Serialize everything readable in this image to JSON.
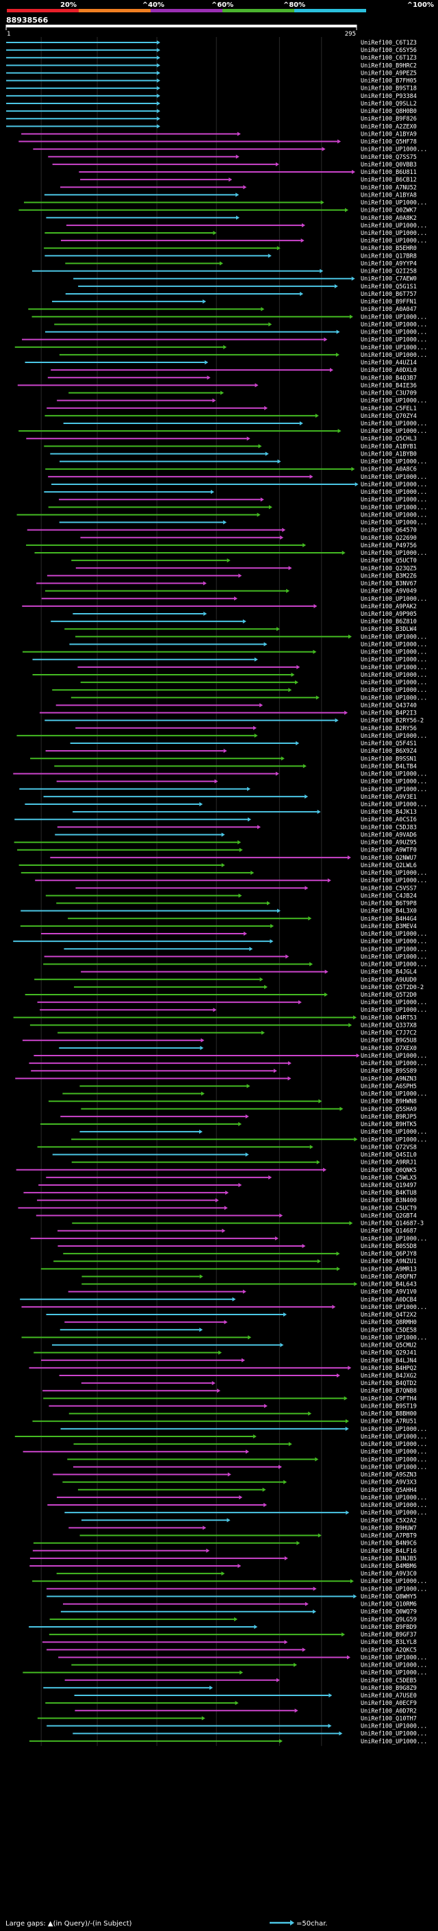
{
  "query_id": "88938566",
  "chart_data": {
    "type": "alignment-overview",
    "identity_scale": {
      "ticks": [
        "20%",
        "^40%",
        "^60%",
        "^80%",
        "^100%"
      ],
      "colors": [
        "#e8202a",
        "#f07f22",
        "#9a2fb3",
        "#4bb32f",
        "#2bc0dd"
      ]
    },
    "query_length": 295,
    "axis_start": "1",
    "axis_end": "295",
    "colors": {
      "cyan": "#4cc7e6",
      "magenta": "#cc44cc",
      "green": "#44bb22"
    },
    "bin_edges": [
      0.1,
      0.26,
      0.43,
      0.6,
      0.78,
      0.9
    ],
    "labels": [
      "UniRef100_C6T1Z3",
      "UniRef100_C6SY56",
      "UniRef100_C6T1Z3",
      "UniRef100_B9HRC2",
      "UniRef100_A9PEZ5",
      "UniRef100_B7FH05",
      "UniRef100_B9ST18",
      "UniRef100_P93384",
      "UniRef100_Q9SLL2",
      "UniRef100_Q8H0B0",
      "UniRef100_B9F826",
      "UniRef100_A2ZEX0",
      "UniRef100_A1BYA9",
      "UniRef100_Q5HF78",
      "UniRef100_UP1000...",
      "UniRef100_Q7SS75",
      "UniRef100_Q0VBB3",
      "UniRef100_B6U811",
      "UniRef100_B6CB12",
      "UniRef100_A7NU52",
      "UniRef100_A1BYA8",
      "UniRef100_UP1000...",
      "UniRef100_Q0ZWK7",
      "UniRef100_A0A8K2",
      "UniRef100_UP1000...",
      "UniRef100_UP1000...",
      "UniRef100_UP1000...",
      "UniRef100_B5EHR0",
      "UniRef100_Q17BR8",
      "UniRef100_A9YYP4",
      "UniRef100_Q2I258",
      "UniRef100_C7AEW0",
      "UniRef100_Q5G1S1",
      "UniRef100_B6T757",
      "UniRef100_B9FFN1",
      "UniRef100_A0A047",
      "UniRef100_UP1000...",
      "UniRef100_UP1000...",
      "UniRef100_UP1000...",
      "UniRef100_UP1000...",
      "UniRef100_UP1000...",
      "UniRef100_UP1000...",
      "UniRef100_A4UZ14",
      "UniRef100_A0DXL0",
      "UniRef100_B4Q3B7",
      "UniRef100_B4IE36",
      "UniRef100_C3U709",
      "UniRef100_UP1000...",
      "UniRef100_C5FEL1",
      "UniRef100_Q70ZY4",
      "UniRef100_UP1000...",
      "UniRef100_UP1000...",
      "UniRef100_Q5CHL3",
      "UniRef100_A1BYB1",
      "UniRef100_A1BYB0",
      "UniRef100_UP1000...",
      "UniRef100_A0A8C6",
      "UniRef100_UP1000...",
      "UniRef100_UP1000...",
      "UniRef100_UP1000...",
      "UniRef100_UP1000...",
      "UniRef100_UP1000...",
      "UniRef100_UP1000...",
      "UniRef100_UP1000...",
      "UniRef100_Q64570",
      "UniRef100_Q22690",
      "UniRef100_P49756",
      "UniRef100_UP1000...",
      "UniRef100_Q5UCT0",
      "UniRef100_Q23QZ5",
      "UniRef100_B3M2Z6",
      "UniRef100_B3NV67",
      "UniRef100_A9V049",
      "UniRef100_UP1000...",
      "UniRef100_A9PAK2",
      "UniRef100_A9P905",
      "UniRef100_B6Z810",
      "UniRef100_B3DLW4",
      "UniRef100_UP1000...",
      "UniRef100_UP1000...",
      "UniRef100_UP1000...",
      "UniRef100_UP1000...",
      "UniRef100_UP1000...",
      "UniRef100_UP1000...",
      "UniRef100_UP1000...",
      "UniRef100_UP1000...",
      "UniRef100_UP1000...",
      "UniRef100_Q43740",
      "UniRef100_B4P2I3",
      "UniRef100_B2RY56-2",
      "UniRef100_B2RY56",
      "UniRef100_UP1000...",
      "UniRef100_Q5F4S1",
      "UniRef100_B6X9Z4",
      "UniRef100_B9SSN1",
      "UniRef100_B4LTB4",
      "UniRef100_UP1000...",
      "UniRef100_UP1000...",
      "UniRef100_UP1000...",
      "UniRef100_A9V3E1",
      "UniRef100_UP1000...",
      "UniRef100_B4JK13",
      "UniRef100_A0CSI6",
      "UniRef100_C5DJ83",
      "UniRef100_A9VAD6",
      "UniRef100_A9UZ95",
      "UniRef100_A9WTF0",
      "UniRef100_Q2NWU7",
      "UniRef100_Q2LWL6",
      "UniRef100_UP1000...",
      "UniRef100_UP1000...",
      "UniRef100_C5VSS7",
      "UniRef100_C4JB24",
      "UniRef100_B6T9P8",
      "UniRef100_B4L3X0",
      "UniRef100_B4H4G4",
      "UniRef100_B3MEV4",
      "UniRef100_UP1000...",
      "UniRef100_UP1000...",
      "UniRef100_UP1000...",
      "UniRef100_UP1000...",
      "UniRef100_UP1000...",
      "UniRef100_B4JGL4",
      "UniRef100_A9UUD0",
      "UniRef100_Q5T2D0-2",
      "UniRef100_Q5T2D0",
      "UniRef100_UP1000...",
      "UniRef100_UP1000...",
      "UniRef100_Q4RT53",
      "UniRef100_Q337X8",
      "UniRef100_C7J7C2",
      "UniRef100_B9G5U8",
      "UniRef100_Q7XEX0",
      "UniRef100_UP1000...",
      "UniRef100_UP1000...",
      "UniRef100_B9SS89",
      "UniRef100_A9NZN3",
      "UniRef100_A6SPH5",
      "UniRef100_UP1000...",
      "UniRef100_B9HWN8",
      "UniRef100_Q5SHA9",
      "UniRef100_B9RJP5",
      "UniRef100_B9HTK5",
      "UniRef100_UP1000...",
      "UniRef100_UP1000...",
      "UniRef100_Q72VS8",
      "UniRef100_Q4SIL0",
      "UniRef100_A9RRJ1",
      "UniRef100_Q0QNK5",
      "UniRef100_C5WLX5",
      "UniRef100_Q19497",
      "UniRef100_B4KTU8",
      "UniRef100_B3N400",
      "UniRef100_C5UCT9",
      "UniRef100_Q2GBT4",
      "UniRef100_Q14687-3",
      "UniRef100_Q14687",
      "UniRef100_UP1000...",
      "UniRef100_B0S5D8",
      "UniRef100_Q6PJY8",
      "UniRef100_A9NZU1",
      "UniRef100_A9MR13",
      "UniRef100_A9QFN7",
      "UniRef100_B4L643",
      "UniRef100_A9V1V0",
      "UniRef100_A0DCB4",
      "UniRef100_UP1000...",
      "UniRef100_Q4T2X2",
      "UniRef100_Q8RMH0",
      "UniRef100_C5DE58",
      "UniRef100_UP1000...",
      "UniRef100_Q5CMU2",
      "UniRef100_Q29J41",
      "UniRef100_B4LJN4",
      "UniRef100_B4HPQ2",
      "UniRef100_B4JXG2",
      "UniRef100_B4QTD2",
      "UniRef100_B7QNB8",
      "UniRef100_C9FTH4",
      "UniRef100_B9ST19",
      "UniRef100_B8BH00",
      "UniRef100_A7RU51",
      "UniRef100_UP1000...",
      "UniRef100_UP1000...",
      "UniRef100_UP1000...",
      "UniRef100_UP1000...",
      "UniRef100_UP1000...",
      "UniRef100_UP1000...",
      "UniRef100_A9SZN3",
      "UniRef100_A9V3X3",
      "UniRef100_Q5AHH4",
      "UniRef100_UP1000...",
      "UniRef100_UP1000...",
      "UniRef100_UP1000...",
      "UniRef100_C5X2A2",
      "UniRef100_B9HUW7",
      "UniRef100_A7PBT9",
      "UniRef100_B4N9C6",
      "UniRef100_B4LF16",
      "UniRef100_B3NJB5",
      "UniRef100_B4MBM6",
      "UniRef100_A9V3C0",
      "UniRef100_UP1000...",
      "UniRef100_UP1000...",
      "UniRef100_Q8WHY5",
      "UniRef100_Q10RM6",
      "UniRef100_Q0WQ79",
      "UniRef100_Q9LG59",
      "UniRef100_B9FBD9",
      "UniRef100_B9GF37",
      "UniRef100_B3LYL8",
      "UniRef100_A2QKC5",
      "UniRef100_UP1000...",
      "UniRef100_UP1000...",
      "UniRef100_UP1000...",
      "UniRef100_C5DEB5",
      "UniRef100_B9G8Z9",
      "UniRef100_A7USE0",
      "UniRef100_A0ECF9",
      "UniRef100_A0D7R2",
      "UniRef100_Q10TH7",
      "UniRef100_UP1000...",
      "UniRef100_UP1000...",
      "UniRef100_UP1000..."
    ],
    "legend_text": "Large gaps: ▲(in Query)/-(in Subject)",
    "scale_text": "=50char."
  }
}
